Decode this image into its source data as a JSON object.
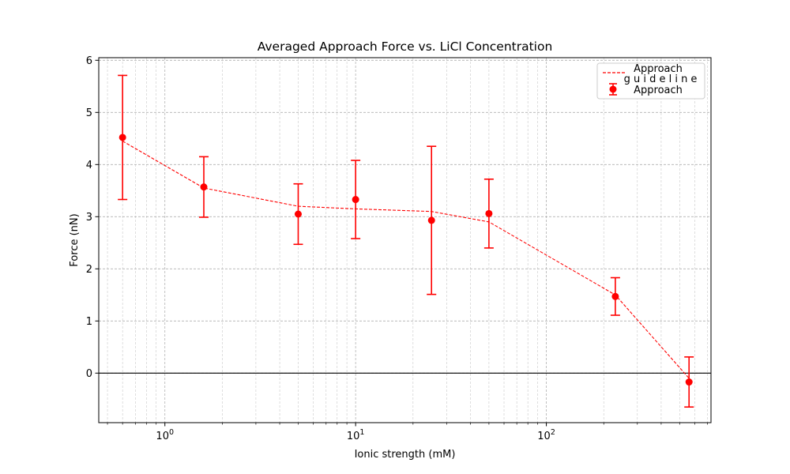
{
  "chart_data": {
    "type": "scatter",
    "title": "Averaged Approach Force vs. LiCl Concentration",
    "xlabel": "Ionic strength (mM)",
    "ylabel": "Force (nN)",
    "xscale": "log",
    "xlim": [
      0.45,
      730
    ],
    "ylim": [
      -0.95,
      6.05
    ],
    "yticks": [
      0,
      1,
      2,
      3,
      4,
      5,
      6
    ],
    "xticks": [
      {
        "value": 1,
        "base": "10",
        "exp": "0"
      },
      {
        "value": 10,
        "base": "10",
        "exp": "1"
      },
      {
        "value": 100,
        "base": "10",
        "exp": "2"
      }
    ],
    "grid": true,
    "zero_line": true,
    "color": "#ff0000",
    "legend": {
      "placement": "top-right",
      "entries": [
        {
          "label": "Approach guideline",
          "lines": [
            "Approach",
            "g u i d e l i n e"
          ],
          "style": "dashed-line"
        },
        {
          "label": "Approach",
          "style": "errorbar-marker"
        }
      ]
    },
    "series": [
      {
        "name": "Approach guideline",
        "style": "dashed",
        "x": [
          0.6,
          1.6,
          5,
          10,
          25,
          50,
          230,
          560
        ],
        "y": [
          4.45,
          3.55,
          3.2,
          3.15,
          3.1,
          2.9,
          1.5,
          -0.1
        ]
      },
      {
        "name": "Approach",
        "style": "errorbar",
        "x": [
          0.6,
          1.6,
          5,
          10,
          25,
          50,
          230,
          560
        ],
        "y": [
          4.52,
          3.57,
          3.05,
          3.33,
          2.93,
          3.06,
          1.47,
          -0.17
        ],
        "err": [
          1.19,
          0.58,
          0.58,
          0.75,
          1.42,
          0.66,
          0.36,
          0.48
        ]
      }
    ]
  }
}
